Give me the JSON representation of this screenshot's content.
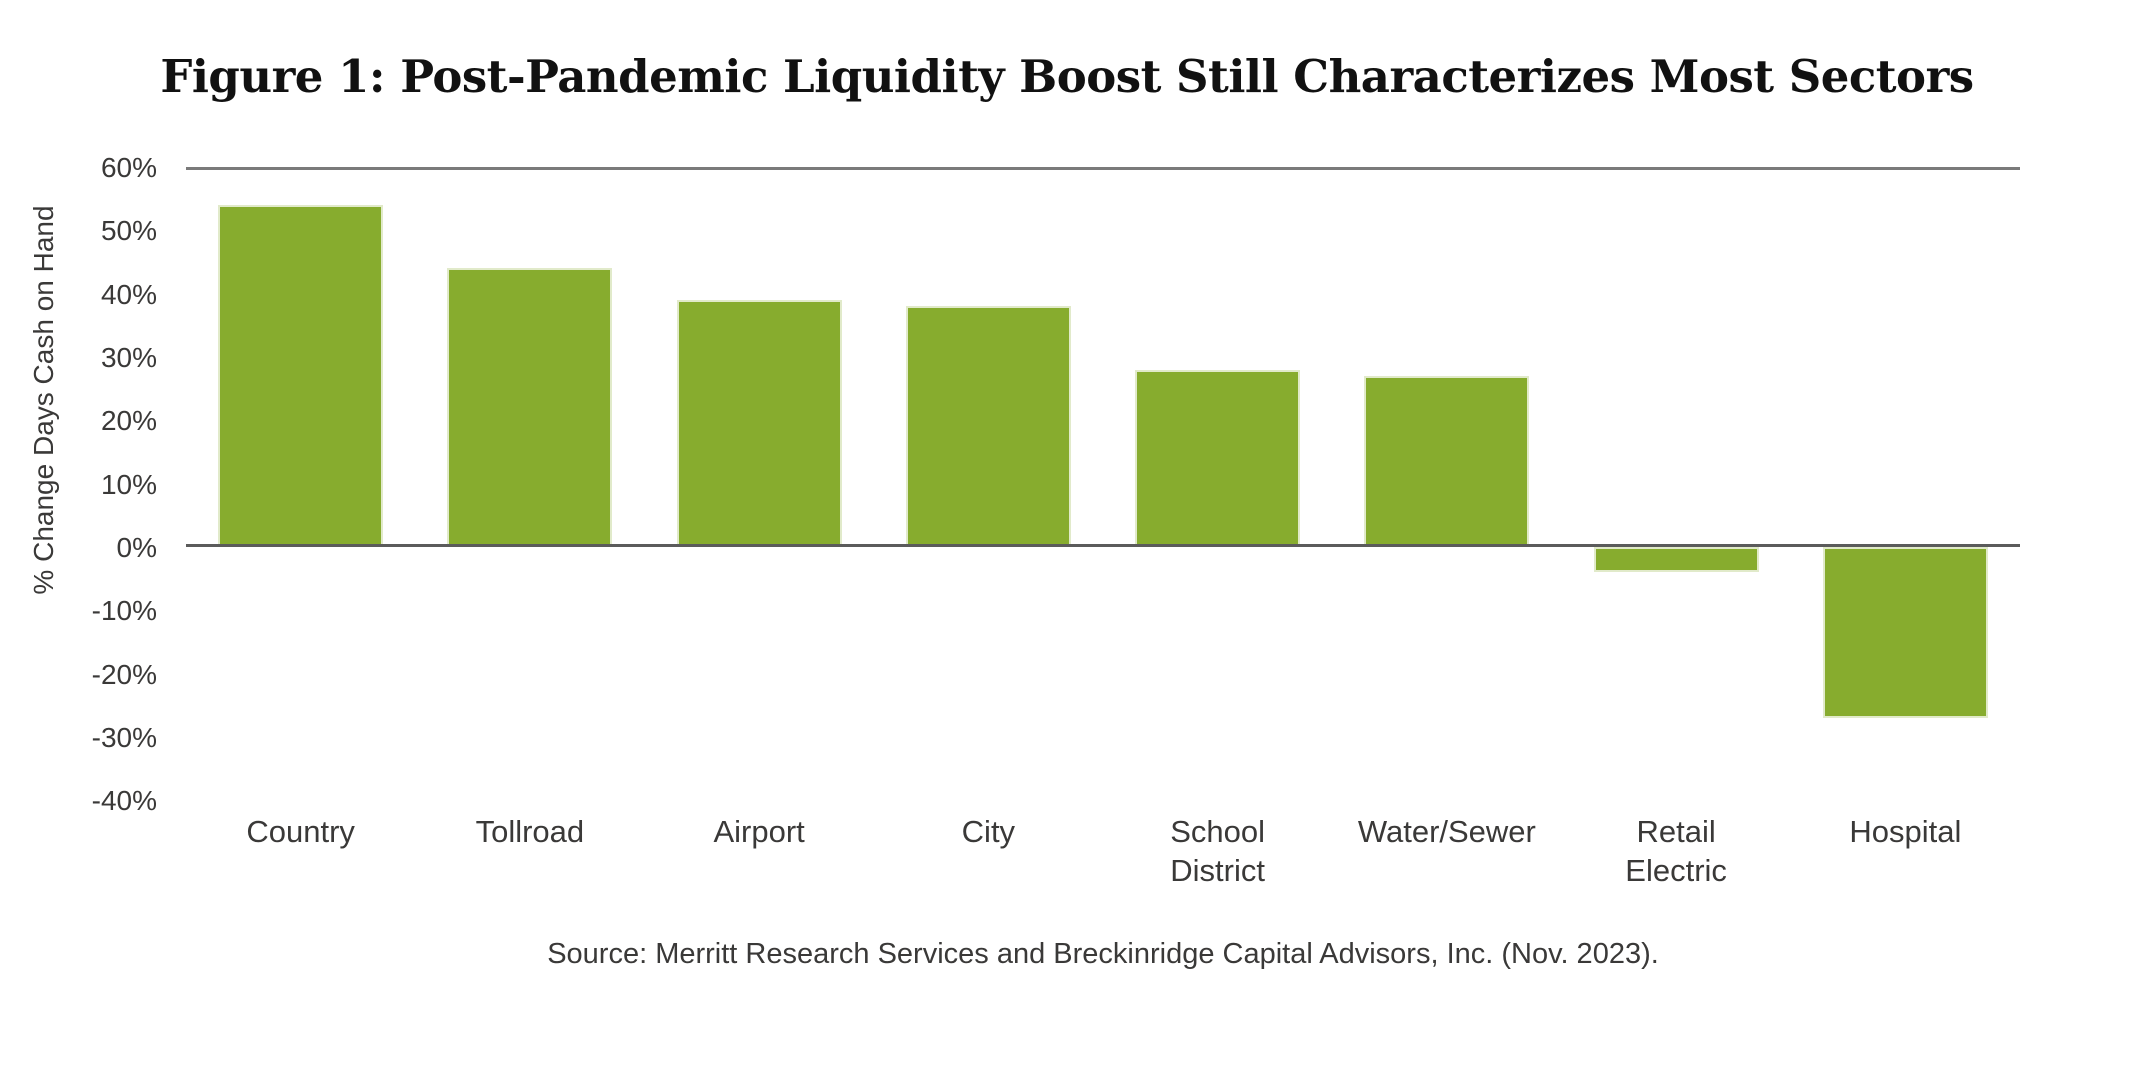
{
  "chart_data": {
    "type": "bar",
    "title": "Figure 1: Post-Pandemic Liquidity Boost Still Characterizes Most Sectors",
    "ylabel": "% Change Days Cash on Hand",
    "xlabel": "",
    "categories": [
      "Country",
      "Tollroad",
      "Airport",
      "City",
      "School District",
      "Water/Sewer",
      "Retail Electric",
      "Hospital"
    ],
    "category_label_lines": [
      [
        "Country"
      ],
      [
        "Tollroad"
      ],
      [
        "Airport"
      ],
      [
        "City"
      ],
      [
        "School",
        "District"
      ],
      [
        "Water/Sewer"
      ],
      [
        "Retail",
        "Electric"
      ],
      [
        "Hospital"
      ]
    ],
    "values": [
      54,
      44,
      39,
      38,
      28,
      27,
      -4,
      -27
    ],
    "ylim": [
      -40,
      60
    ],
    "ytick_step": 10,
    "ytick_suffix": "%",
    "grid": "top-gridline-and-zero-line-only",
    "legend": "none",
    "colors": {
      "bar": "#87AC2E",
      "gridline": "#7A7A7A",
      "zero_line": "#5B5B5B",
      "text": "#3A3938",
      "title_text": "#111111"
    },
    "source": "Source: Merritt Research Services and Breckinridge Capital Advisors, Inc. (Nov. 2023)."
  }
}
